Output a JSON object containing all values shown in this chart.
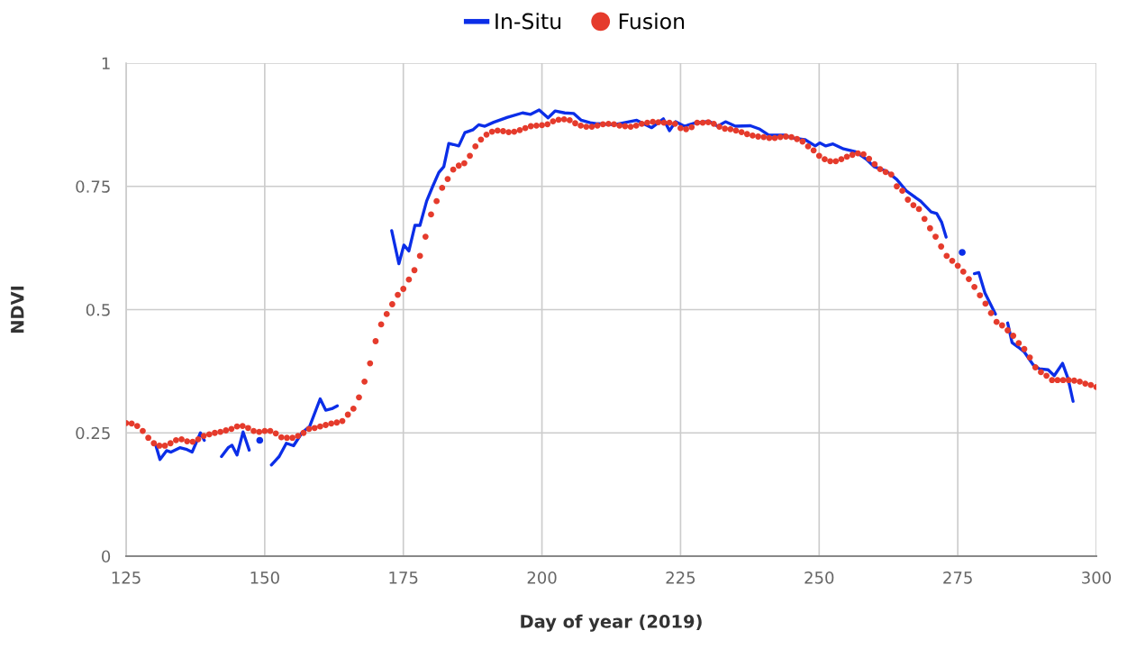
{
  "chart_data": {
    "type": "line",
    "xlabel": "Day of year (2019)",
    "ylabel": "NDVI",
    "xlim": [
      125,
      300
    ],
    "ylim": [
      0,
      1
    ],
    "xticks": [
      125,
      150,
      175,
      200,
      225,
      250,
      275,
      300
    ],
    "yticks": [
      0,
      0.25,
      0.5,
      0.75,
      1
    ],
    "grid": true,
    "legend": "top",
    "series": [
      {
        "name": "In-Situ",
        "color": "#0b2ee8",
        "line_style": "solid",
        "marker": "none",
        "x": [
          130.4,
          131.1,
          132.3,
          133.1,
          134.7,
          135.8,
          136.9,
          138.4,
          139.1,
          140.5,
          142.2,
          143.4,
          144.1,
          145.0,
          146.1,
          147.2,
          148.0,
          149.1,
          150.0,
          151.2,
          152.6,
          153.9,
          155.2,
          156.7,
          158.1,
          160.0,
          161.0,
          162.1,
          163.1,
          168.0,
          172.9,
          174.2,
          175.1,
          176.0,
          177.1,
          178.0,
          179.2,
          180.3,
          181.4,
          182.3,
          183.2,
          184.0,
          185.0,
          186.1,
          187.6,
          188.6,
          189.7,
          191.3,
          193.8,
          196.5,
          197.9,
          199.5,
          201.1,
          202.4,
          204.1,
          205.7,
          207.1,
          208.7,
          210.0,
          213.0,
          217.1,
          219.8,
          221.9,
          223.0,
          224.1,
          225.7,
          227.4,
          230.1,
          231.7,
          233.1,
          234.9,
          237.6,
          239.3,
          240.9,
          243.6,
          245.3,
          247.4,
          249.3,
          250.1,
          251.2,
          252.5,
          254.4,
          256.6,
          258.5,
          259.9,
          262.1,
          264.0,
          265.8,
          268.3,
          270.2,
          271.2,
          272.1,
          272.9,
          274.5,
          275.8,
          277.0,
          278.0,
          278.8,
          279.9,
          281.8,
          283.0,
          284.0,
          284.8,
          285.9,
          287.0,
          288.6,
          289.7,
          291.3,
          292.4,
          293.9,
          294.9,
          295.8
        ],
        "values": [
          0.223,
          0.196,
          0.214,
          0.211,
          0.22,
          0.217,
          0.211,
          0.25,
          0.235,
          null,
          0.202,
          0.22,
          0.225,
          0.205,
          0.252,
          0.215,
          null,
          0.235,
          null,
          0.185,
          0.202,
          0.229,
          0.224,
          0.25,
          0.263,
          0.319,
          0.296,
          0.299,
          0.305,
          null,
          0.66,
          0.593,
          0.631,
          0.619,
          0.671,
          0.671,
          0.72,
          0.75,
          0.778,
          0.79,
          0.837,
          0.835,
          0.832,
          0.859,
          0.865,
          0.875,
          0.872,
          0.88,
          0.89,
          0.899,
          0.896,
          0.905,
          0.889,
          0.903,
          0.899,
          0.898,
          0.884,
          0.879,
          0.877,
          0.875,
          0.884,
          0.869,
          0.887,
          0.863,
          0.881,
          0.872,
          0.878,
          0.882,
          0.872,
          0.881,
          0.872,
          0.873,
          0.866,
          0.854,
          0.854,
          0.848,
          0.845,
          0.832,
          0.838,
          0.832,
          0.836,
          0.826,
          0.82,
          0.805,
          0.79,
          0.781,
          0.764,
          0.74,
          0.72,
          0.698,
          0.695,
          0.677,
          0.647,
          null,
          0.616,
          null,
          0.573,
          0.575,
          0.534,
          0.491,
          null,
          0.473,
          0.433,
          0.424,
          0.414,
          0.388,
          0.38,
          0.378,
          0.366,
          0.391,
          0.36,
          0.314
        ]
      },
      {
        "name": "Fusion",
        "type": "scatter",
        "color": "#e53b2c",
        "marker": "circle",
        "x": [
          125,
          126,
          127,
          128,
          129,
          130,
          131,
          132,
          133,
          134,
          135,
          136,
          137,
          138,
          139,
          140,
          141,
          142,
          143,
          144,
          145,
          146,
          147,
          148,
          149,
          150,
          151,
          152,
          153,
          154,
          155,
          156,
          157,
          158,
          159,
          160,
          161,
          162,
          163,
          164,
          165,
          166,
          167,
          168,
          169,
          170,
          171,
          172,
          173,
          174,
          175,
          176,
          177,
          178,
          179,
          180,
          181,
          182,
          183,
          184,
          185,
          186,
          187,
          188,
          189,
          190,
          191,
          192,
          193,
          194,
          195,
          196,
          197,
          198,
          199,
          200,
          201,
          202,
          203,
          204,
          205,
          206,
          207,
          208,
          209,
          210,
          211,
          212,
          213,
          214,
          215,
          216,
          217,
          218,
          219,
          220,
          221,
          222,
          223,
          224,
          225,
          226,
          227,
          228,
          229,
          230,
          231,
          232,
          233,
          234,
          235,
          236,
          237,
          238,
          239,
          240,
          241,
          242,
          243,
          244,
          245,
          246,
          247,
          248,
          249,
          250,
          251,
          252,
          253,
          254,
          255,
          256,
          257,
          258,
          259,
          260,
          261,
          262,
          263,
          264,
          265,
          266,
          267,
          268,
          269,
          270,
          271,
          272,
          273,
          274,
          275,
          276,
          277,
          278,
          279,
          280,
          281,
          282,
          283,
          284,
          285,
          286,
          287,
          288,
          289,
          290,
          291,
          292,
          293,
          294,
          295,
          296,
          297,
          298,
          299,
          300
        ],
        "values": [
          0.27,
          0.269,
          0.264,
          0.254,
          0.24,
          0.229,
          0.224,
          0.224,
          0.229,
          0.235,
          0.237,
          0.233,
          0.232,
          0.237,
          0.244,
          0.247,
          0.25,
          0.252,
          0.255,
          0.258,
          0.263,
          0.264,
          0.26,
          0.254,
          0.252,
          0.254,
          0.254,
          0.249,
          0.241,
          0.24,
          0.24,
          0.244,
          0.25,
          0.258,
          0.26,
          0.263,
          0.266,
          0.269,
          0.271,
          0.274,
          0.287,
          0.299,
          0.322,
          0.354,
          0.391,
          0.436,
          0.47,
          0.491,
          0.511,
          0.53,
          0.542,
          0.561,
          0.58,
          0.609,
          0.648,
          0.693,
          0.72,
          0.747,
          0.765,
          0.784,
          0.792,
          0.797,
          0.812,
          0.831,
          0.845,
          0.855,
          0.861,
          0.863,
          0.862,
          0.86,
          0.861,
          0.864,
          0.868,
          0.872,
          0.873,
          0.874,
          0.876,
          0.882,
          0.885,
          0.886,
          0.884,
          0.878,
          0.873,
          0.871,
          0.871,
          0.873,
          0.876,
          0.877,
          0.876,
          0.873,
          0.872,
          0.871,
          0.873,
          0.877,
          0.879,
          0.881,
          0.88,
          0.879,
          0.879,
          0.877,
          0.868,
          0.866,
          0.87,
          0.879,
          0.879,
          0.88,
          0.877,
          0.871,
          0.867,
          0.866,
          0.863,
          0.86,
          0.856,
          0.853,
          0.851,
          0.85,
          0.848,
          0.848,
          0.85,
          0.851,
          0.85,
          0.846,
          0.841,
          0.831,
          0.823,
          0.812,
          0.805,
          0.801,
          0.801,
          0.805,
          0.81,
          0.814,
          0.817,
          0.815,
          0.806,
          0.795,
          0.785,
          0.779,
          0.774,
          0.75,
          0.741,
          0.723,
          0.712,
          0.704,
          0.684,
          0.665,
          0.648,
          0.628,
          0.609,
          0.599,
          0.589,
          0.577,
          0.562,
          0.546,
          0.529,
          0.512,
          0.493,
          0.475,
          0.468,
          0.458,
          0.447,
          0.432,
          0.42,
          0.403,
          0.383,
          0.373,
          0.366,
          0.357,
          0.357,
          0.357,
          0.357,
          0.356,
          0.354,
          0.35,
          0.347,
          0.343
        ]
      }
    ]
  }
}
